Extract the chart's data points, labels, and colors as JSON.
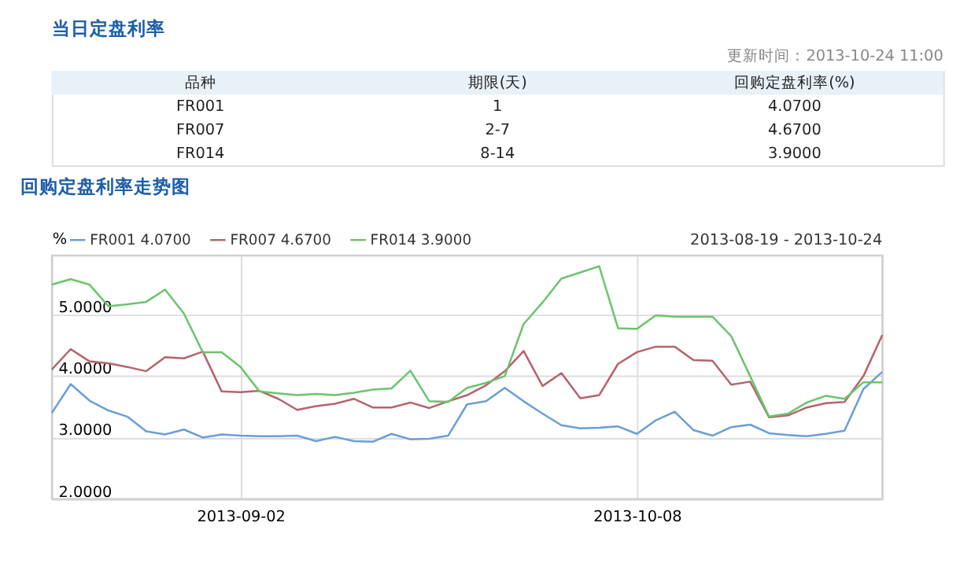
{
  "chart_data": [
    {
      "type": "other",
      "title": "当日定盘利率",
      "annotations": [
        "更新时间：2013-10-24 11:00",
        "品种",
        "期限(天)",
        "回购定盘利率(%)",
        "FR001",
        "1",
        "4.0700",
        "FR007",
        "2-7",
        "4.6700",
        "FR014",
        "8-14",
        "3.9000"
      ]
    },
    {
      "type": "line",
      "title": "回购定盘利率走势图",
      "ylabel": "%",
      "annotations": [
        "2013-08-19 - 2013-10-24"
      ],
      "categories": [
        null,
        null,
        null,
        null,
        null,
        null,
        null,
        null,
        null,
        null,
        "2013-09-02",
        null,
        null,
        null,
        null,
        null,
        null,
        null,
        null,
        null,
        null,
        null,
        null,
        null,
        null,
        null,
        null,
        null,
        null,
        null,
        null,
        "2013-10-08",
        null,
        null,
        null,
        null,
        null,
        null,
        null,
        null,
        null,
        null,
        null,
        null,
        null
      ],
      "ylim": [
        2,
        5.97
      ],
      "yticks": [
        {
          "value": 2,
          "label": "2.0000"
        },
        {
          "value": 3,
          "label": "3.0000"
        },
        {
          "value": 4,
          "label": "4.0000"
        },
        {
          "value": 5,
          "label": "5.0000"
        }
      ],
      "grid": true,
      "legend": "top left",
      "series": [
        {
          "name": "FR001 4.0700",
          "color": "#6a9fd8",
          "values": [
            3.4,
            3.87,
            3.6,
            3.44,
            3.34,
            3.1,
            3.05,
            3.13,
            3.0,
            3.05,
            3.03,
            3.02,
            3.02,
            3.03,
            2.94,
            3.01,
            2.94,
            2.93,
            3.06,
            2.97,
            2.98,
            3.03,
            3.54,
            3.59,
            3.81,
            3.59,
            3.39,
            3.2,
            3.15,
            3.16,
            3.18,
            3.06,
            3.28,
            3.42,
            3.12,
            3.03,
            3.17,
            3.21,
            3.07,
            3.04,
            3.02,
            3.06,
            3.11,
            3.79,
            4.07
          ]
        },
        {
          "name": "FR007 4.6700",
          "color": "#b5646a",
          "values": [
            4.11,
            4.44,
            4.24,
            4.21,
            4.15,
            4.08,
            4.31,
            4.29,
            4.4,
            3.75,
            3.74,
            3.76,
            3.63,
            3.45,
            3.51,
            3.55,
            3.63,
            3.49,
            3.49,
            3.57,
            3.48,
            3.59,
            3.69,
            3.85,
            4.08,
            4.41,
            3.84,
            4.05,
            3.64,
            3.69,
            4.2,
            4.39,
            4.48,
            4.48,
            4.26,
            4.25,
            3.86,
            3.91,
            3.33,
            3.36,
            3.49,
            3.56,
            3.58,
            4.0,
            4.67
          ]
        },
        {
          "name": "FR014 3.9000",
          "color": "#6cc46c",
          "values": [
            5.49,
            5.58,
            5.49,
            5.14,
            5.17,
            5.21,
            5.41,
            5.02,
            4.39,
            4.39,
            4.15,
            3.75,
            3.72,
            3.69,
            3.71,
            3.69,
            3.73,
            3.78,
            3.8,
            4.09,
            3.59,
            3.58,
            3.81,
            3.89,
            4.0,
            4.85,
            5.2,
            5.59,
            5.69,
            5.79,
            4.78,
            4.77,
            4.99,
            4.97,
            4.97,
            4.97,
            4.65,
            4.0,
            3.34,
            3.39,
            3.57,
            3.68,
            3.63,
            3.9,
            3.9
          ]
        }
      ]
    }
  ]
}
